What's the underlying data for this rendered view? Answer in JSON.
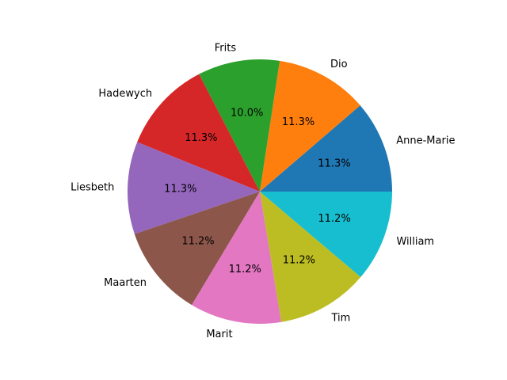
{
  "chart_data": {
    "type": "pie",
    "title": "",
    "start_angle_deg": 0,
    "direction": "counterclockwise",
    "slices": [
      {
        "label": "Anne-Marie",
        "value": 11.3,
        "pct_label": "11.3%",
        "color": "#1f77b4"
      },
      {
        "label": "Dio",
        "value": 11.3,
        "pct_label": "11.3%",
        "color": "#ff7f0e"
      },
      {
        "label": "Frits",
        "value": 10.0,
        "pct_label": "10.0%",
        "color": "#2ca02c"
      },
      {
        "label": "Hadewych",
        "value": 11.3,
        "pct_label": "11.3%",
        "color": "#d62728"
      },
      {
        "label": "Liesbeth",
        "value": 11.3,
        "pct_label": "11.3%",
        "color": "#9467bd"
      },
      {
        "label": "Maarten",
        "value": 11.2,
        "pct_label": "11.2%",
        "color": "#8c564b"
      },
      {
        "label": "Marit",
        "value": 11.2,
        "pct_label": "11.2%",
        "color": "#e377c2"
      },
      {
        "label": "Tim",
        "value": 11.2,
        "pct_label": "11.2%",
        "color": "#bcbd22"
      },
      {
        "label": "William",
        "value": 11.2,
        "pct_label": "11.2%",
        "color": "#17becf"
      }
    ]
  }
}
